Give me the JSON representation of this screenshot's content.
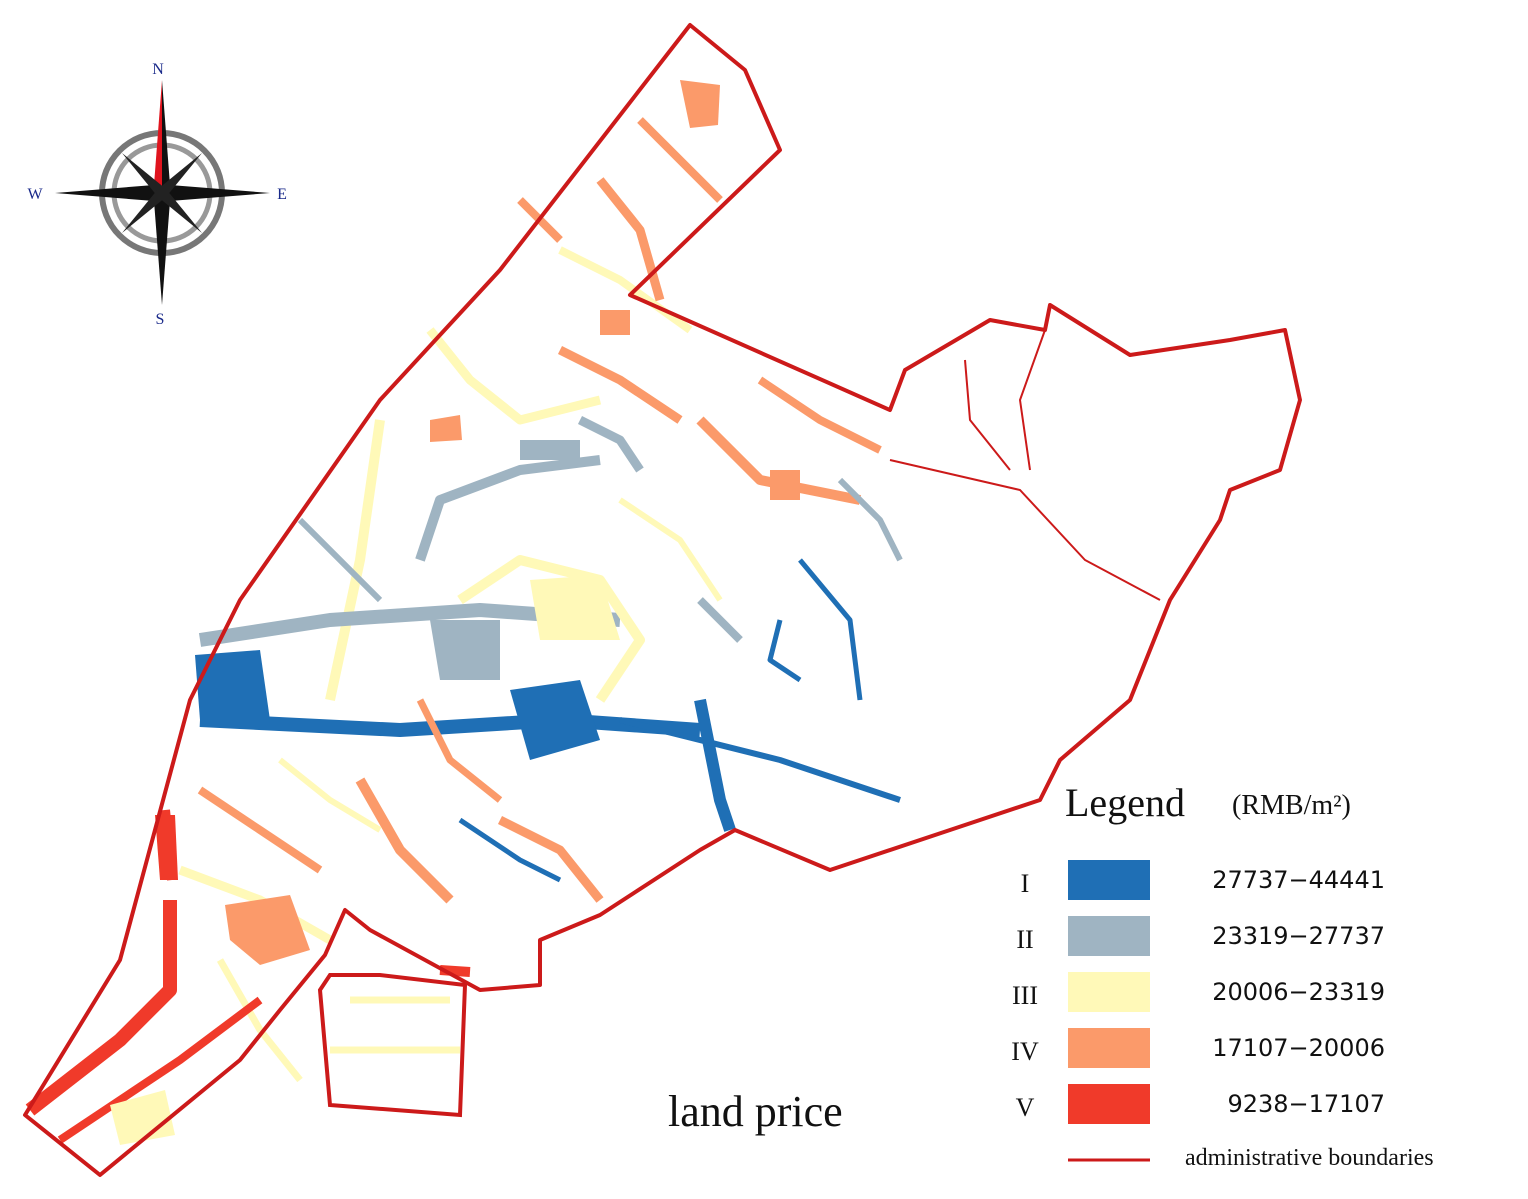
{
  "compass": {
    "north": "N",
    "south": "S",
    "west": "W",
    "east": "E"
  },
  "title": "land price",
  "legend": {
    "title": "Legend",
    "unit": "(RMB/m²)",
    "classes": [
      {
        "grade": "I",
        "range": "27737−44441",
        "color": "#1f6fb5"
      },
      {
        "grade": "II",
        "range": "23319−27737",
        "color": "#9fb4c2"
      },
      {
        "grade": "III",
        "range": "20006−23319",
        "color": "#fff9b8"
      },
      {
        "grade": "IV",
        "range": "17107−20006",
        "color": "#fb9a6a"
      },
      {
        "grade": "V",
        "range": "9238−17107",
        "color": "#f03a2a"
      }
    ],
    "boundary": {
      "label": "administrative boundaries",
      "color": "#cc1a1a"
    }
  }
}
